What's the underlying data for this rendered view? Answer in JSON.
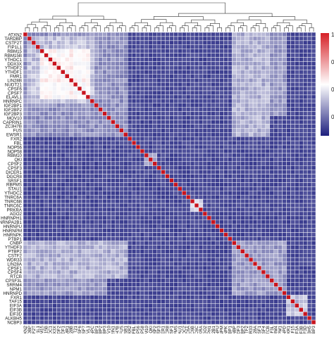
{
  "chart_data": {
    "type": "heatmap",
    "title": "",
    "xlabel": "",
    "ylabel": "",
    "labels": [
      "ATXN2",
      "TARDBP",
      "CSTF2T",
      "FIP1L1",
      "RBM15",
      "RBM15B",
      "YTHDC1",
      "DDX3X",
      "YTHDF2",
      "YTHDF1",
      "FMR1",
      "LIN28B",
      "NUDT21",
      "CPSF6",
      "CPSF7",
      "ELAVL1",
      "HNRNPC",
      "IGF2BP1",
      "IGF2BP2",
      "IGF2BP3",
      "MOV10",
      "CAPRIN1",
      "ZC3H7B",
      "FUS",
      "EWSR1",
      "FXR2",
      "FBL",
      "NOP56",
      "NOP58",
      "RBM10",
      "QKI",
      "CPSF2",
      "CPSF3",
      "DICER1",
      "DGCR8",
      "SRSF1",
      "RBPMS",
      "STAU1",
      "YTHDC2",
      "TNRC6A",
      "TNRC6B",
      "TNRC6C",
      "PRKRA",
      "AGO2",
      "HNRNPH1",
      "HNRNPA2B1",
      "HNRNPU",
      "HNRNPM",
      "HNRNPK",
      "PTBP1",
      "CNBP",
      "YTHDF3",
      "PTBP2",
      "CSTF2",
      "WDR33",
      "LIN28A",
      "CPSF1",
      "CPSF4",
      "RTCB",
      "CPSF3L",
      "SRRM4",
      "NPM1",
      "HNRNPD",
      "FXR1",
      "TAF15",
      "EIF3A",
      "EIF3B",
      "EIF3D",
      "ALKBH5",
      "NCBP3"
    ],
    "high_block_end": 16,
    "medium_block_end": 25,
    "color_scale": {
      "low": "#1d1f7e",
      "mid": "#ffffff",
      "high": "#d62027",
      "diag": "#c8141e"
    },
    "colorbar_ticks": [
      "1",
      "0",
      "0",
      "0"
    ]
  }
}
